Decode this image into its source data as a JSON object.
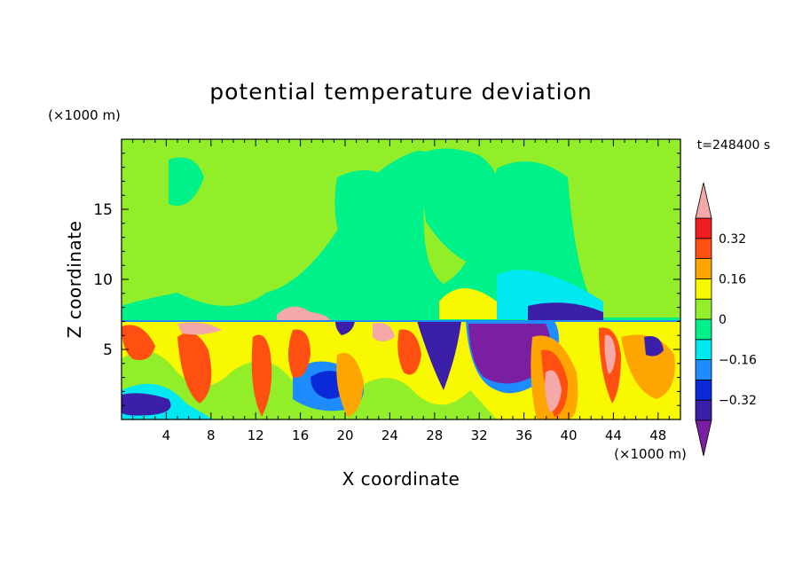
{
  "chart_data": {
    "type": "heatmap",
    "title": "potential temperature deviation",
    "xlabel": "X coordinate",
    "ylabel": "Z coordinate",
    "x_unit": "(×1000 m)",
    "y_unit": "(×1000 m)",
    "time_label": "t=248400 s",
    "xlim": [
      0,
      50
    ],
    "ylim": [
      0,
      20
    ],
    "x_ticks": [
      4,
      8,
      12,
      16,
      20,
      24,
      28,
      32,
      36,
      40,
      44,
      48
    ],
    "y_ticks": [
      5,
      10,
      15
    ],
    "colorbar": {
      "levels": [
        -0.4,
        -0.32,
        -0.24,
        -0.16,
        -0.08,
        0,
        0.08,
        0.16,
        0.24,
        0.32,
        0.4
      ],
      "labels": [
        "0.32",
        "0.16",
        "0",
        "−0.16",
        "−0.32"
      ],
      "label_values": [
        0.32,
        0.16,
        0,
        -0.16,
        -0.32
      ],
      "colors_low_to_high": [
        "#7a1fa2",
        "#3b1fa8",
        "#0a2ad9",
        "#1e8bff",
        "#00e8f0",
        "#00f08a",
        "#92ee28",
        "#f8f800",
        "#ffa500",
        "#ff5012",
        "#f01e1e",
        "#f4a8a8"
      ],
      "extend": "both"
    }
  }
}
